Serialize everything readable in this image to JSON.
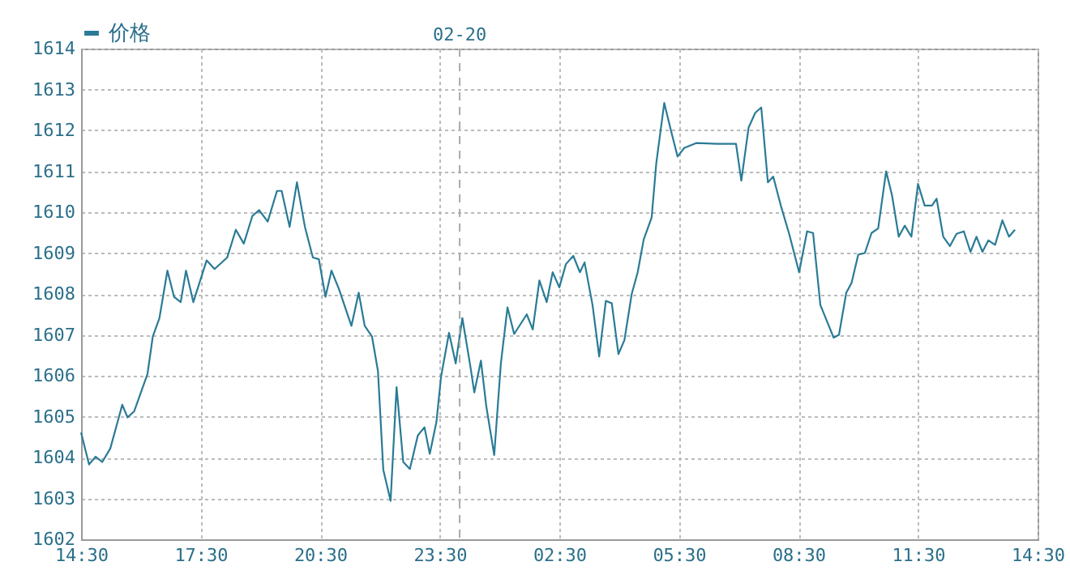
{
  "chart_data": {
    "type": "line",
    "legend": "top",
    "grid": true,
    "line_style": "solid",
    "x": [
      "--02-19T14:30",
      "--02-19T14:42",
      "--02-19T14:52",
      "--02-19T15:02",
      "--02-19T15:14",
      "--02-19T15:25",
      "--02-19T15:32",
      "--02-19T15:40",
      "--02-19T15:50",
      "--02-19T16:10",
      "--02-19T16:18",
      "--02-19T16:28",
      "--02-19T16:40",
      "--02-19T16:50",
      "--02-19T17:00",
      "--02-19T17:08",
      "--02-19T17:19",
      "--02-19T17:39",
      "--02-19T17:51",
      "--02-19T18:10",
      "--02-19T18:23",
      "--02-19T18:35",
      "--02-19T18:48",
      "--02-19T18:58",
      "--02-19T19:11",
      "--02-19T19:25",
      "--02-19T19:32",
      "--02-19T19:44",
      "--02-19T19:55",
      "--02-19T20:07",
      "--02-19T20:19",
      "--02-19T20:28",
      "--02-19T20:38",
      "--02-19T20:47",
      "--02-19T20:58",
      "--02-19T21:17",
      "--02-19T21:28",
      "--02-19T21:37",
      "--02-19T21:48",
      "--02-19T21:57",
      "--02-19T22:05",
      "--02-19T22:16",
      "--02-19T22:25",
      "--02-19T22:35",
      "--02-19T22:45",
      "--02-19T22:57",
      "--02-19T23:07",
      "--02-19T23:15",
      "--02-19T23:25",
      "--02-19T23:32",
      "--02-19T23:44",
      "--02-19T23:54",
      "--02-20T00:04",
      "--02-20T00:16",
      "--02-20T00:22",
      "--02-20T00:32",
      "--02-20T00:40",
      "--02-20T00:52",
      "--02-20T01:02",
      "--02-20T01:12",
      "--02-20T01:22",
      "--02-20T01:41",
      "--02-20T01:50",
      "--02-20T02:00",
      "--02-20T02:11",
      "--02-20T02:20",
      "--02-20T02:30",
      "--02-20T02:40",
      "--02-20T02:51",
      "--02-20T03:01",
      "--02-20T03:08",
      "--02-20T03:20",
      "--02-20T03:30",
      "--02-20T03:40",
      "--02-20T03:49",
      "--02-20T03:59",
      "--02-20T04:08",
      "--02-20T04:19",
      "--02-20T04:28",
      "--02-20T04:37",
      "--02-20T04:49",
      "--02-20T04:56",
      "--02-20T05:08",
      "--02-20T05:18",
      "--02-20T05:28",
      "--02-20T05:38",
      "--02-20T05:56",
      "--02-20T06:28",
      "--02-20T06:56",
      "--02-20T07:04",
      "--02-20T07:15",
      "--02-20T07:25",
      "--02-20T07:34",
      "--02-20T07:44",
      "--02-20T07:52",
      "--02-20T08:04",
      "--02-20T08:16",
      "--02-20T08:31",
      "--02-20T08:43",
      "--02-20T08:52",
      "--02-20T09:03",
      "--02-20T09:13",
      "--02-20T09:23",
      "--02-20T09:31",
      "--02-20T09:42",
      "--02-20T09:50",
      "--02-20T10:00",
      "--02-20T10:10",
      "--02-20T10:20",
      "--02-20T10:30",
      "--02-20T10:42",
      "--02-20T10:51",
      "--02-20T11:01",
      "--02-20T11:10",
      "--02-20T11:20",
      "--02-20T11:30",
      "--02-20T11:40",
      "--02-20T11:51",
      "--02-20T11:58",
      "--02-20T12:08",
      "--02-20T12:18",
      "--02-20T12:28",
      "--02-20T12:39",
      "--02-20T12:49",
      "--02-20T12:58",
      "--02-20T13:07",
      "--02-20T13:16",
      "--02-20T13:26",
      "--02-20T13:37",
      "--02-20T13:47",
      "--02-20T13:56"
    ],
    "series": [
      {
        "name": "价格",
        "color": "#2a7b96",
        "values": [
          1604.61,
          1603.83,
          1604.02,
          1603.89,
          1604.22,
          1604.87,
          1605.29,
          1604.98,
          1605.13,
          1606.04,
          1606.96,
          1607.41,
          1608.57,
          1607.93,
          1607.8,
          1608.57,
          1607.8,
          1608.82,
          1608.61,
          1608.89,
          1609.57,
          1609.23,
          1609.91,
          1610.05,
          1609.77,
          1610.52,
          1610.52,
          1609.64,
          1610.73,
          1609.64,
          1608.89,
          1608.85,
          1607.93,
          1608.57,
          1608.13,
          1607.22,
          1608.03,
          1607.22,
          1606.96,
          1606.11,
          1603.7,
          1602.94,
          1605.72,
          1603.89,
          1603.72,
          1604.54,
          1604.74,
          1604.09,
          1604.87,
          1605.98,
          1607.05,
          1606.3,
          1607.41,
          1606.24,
          1605.59,
          1606.37,
          1605.26,
          1604.06,
          1606.3,
          1607.67,
          1607.02,
          1607.5,
          1607.13,
          1608.33,
          1607.8,
          1608.53,
          1608.16,
          1608.73,
          1608.93,
          1608.53,
          1608.77,
          1607.73,
          1606.47,
          1607.83,
          1607.77,
          1606.53,
          1606.87,
          1608.0,
          1608.53,
          1609.33,
          1609.87,
          1611.2,
          1612.67,
          1612.0,
          1611.36,
          1611.57,
          1611.69,
          1611.67,
          1611.67,
          1610.77,
          1612.07,
          1612.43,
          1612.56,
          1610.73,
          1610.87,
          1610.13,
          1609.47,
          1608.53,
          1609.53,
          1609.49,
          1607.73,
          1607.33,
          1606.93,
          1607.0,
          1608.03,
          1608.27,
          1608.96,
          1609.0,
          1609.49,
          1609.6,
          1611.0,
          1610.4,
          1609.4,
          1609.67,
          1609.4,
          1610.69,
          1610.16,
          1610.16,
          1610.33,
          1609.4,
          1609.17,
          1609.47,
          1609.53,
          1609.03,
          1609.4,
          1609.03,
          1609.31,
          1609.2,
          1609.8,
          1609.4,
          1609.57
        ]
      }
    ],
    "xlim": [
      "--02-19T14:30",
      "--02-20T14:30"
    ],
    "xticks": [
      {
        "value": "--02-19T14:30",
        "label": "14:30"
      },
      {
        "value": "--02-19T17:30",
        "label": "17:30"
      },
      {
        "value": "--02-19T20:30",
        "label": "20:30"
      },
      {
        "value": "--02-19T23:30",
        "label": "23:30"
      },
      {
        "value": "--02-20T02:30",
        "label": "02:30"
      },
      {
        "value": "--02-20T05:30",
        "label": "05:30"
      },
      {
        "value": "--02-20T08:30",
        "label": "08:30"
      },
      {
        "value": "--02-20T11:30",
        "label": "11:30"
      },
      {
        "value": "--02-20T14:30",
        "label": "14:30"
      }
    ],
    "ylim": [
      1602,
      1614
    ],
    "yticks": [
      1602,
      1603,
      1604,
      1605,
      1606,
      1607,
      1608,
      1609,
      1610,
      1611,
      1612,
      1613,
      1614
    ],
    "ref_lines": [
      {
        "axis": "x",
        "value": "--02-20",
        "label": "02-20",
        "color": "#aaaaaa",
        "line_style": "dashed"
      }
    ]
  }
}
